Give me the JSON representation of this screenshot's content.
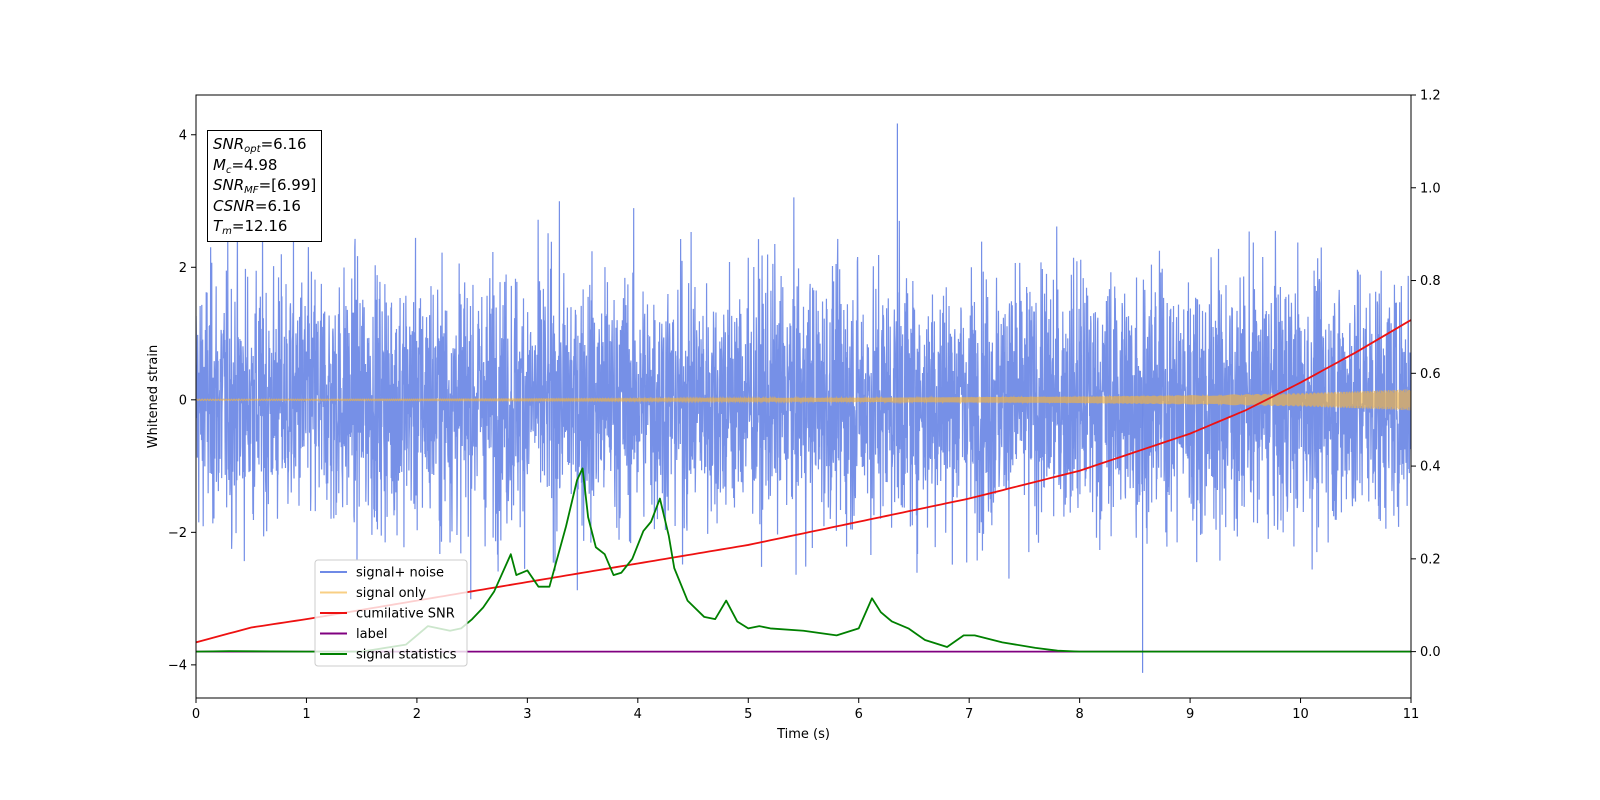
{
  "chart_data": {
    "type": "line",
    "xlabel": "Time (s)",
    "ylabel": "Whitened strain",
    "xlim": [
      0,
      11
    ],
    "ylim": [
      -4.5,
      4.6
    ],
    "y2lim": [
      -0.1,
      1.2
    ],
    "xticks": [
      "0",
      "1",
      "2",
      "3",
      "4",
      "5",
      "6",
      "7",
      "8",
      "9",
      "10",
      "11"
    ],
    "yticks": [
      "−4",
      "−2",
      "0",
      "2",
      "4"
    ],
    "y2ticks": [
      "0.0",
      "0.2",
      "0.4",
      "0.6",
      "0.8",
      "1.0",
      "1.2"
    ],
    "legend_position": "lower-left",
    "grid": false,
    "annotation": {
      "snr_opt_sym": "SNR",
      "snr_opt_sub": "opt",
      "snr_opt_val": "=6.16",
      "mc_sym": "M",
      "mc_sub": "c",
      "mc_val": "=4.98",
      "snr_mf_sym": "SNR",
      "snr_mf_sub": "MF",
      "snr_mf_val": "=[6.99]",
      "csnr_sym": "CSNR",
      "csnr_val": "=6.16",
      "tm_sym": "T",
      "tm_sub": "m",
      "tm_val": "=12.16"
    },
    "series": [
      {
        "name": "signal+ noise",
        "color": "#6f8ae6",
        "axis": "left",
        "description_values": {
          "typical_range": [
            -2.0,
            2.0
          ],
          "max_peak": 4.17,
          "min_peak": -4.12,
          "min_peak_at": 8.57,
          "max_peak_at": 6.35
        }
      },
      {
        "name": "signal only",
        "color": "#f5b642",
        "axis": "left",
        "envelope": {
          "x": [
            0,
            2,
            4,
            6,
            8,
            9,
            10,
            11
          ],
          "amp": [
            0.01,
            0.012,
            0.02,
            0.03,
            0.05,
            0.07,
            0.1,
            0.16
          ]
        }
      },
      {
        "name": "cumilative SNR",
        "color": "#ee1111",
        "axis": "right",
        "x": [
          0,
          0.5,
          1,
          1.5,
          2,
          2.5,
          3,
          3.5,
          4,
          4.5,
          5,
          5.5,
          6,
          6.5,
          7,
          7.5,
          8,
          8.5,
          9,
          9.5,
          10,
          10.5,
          11
        ],
        "y": [
          0.02,
          0.052,
          0.07,
          0.09,
          0.11,
          0.13,
          0.15,
          0.17,
          0.19,
          0.21,
          0.23,
          0.255,
          0.28,
          0.305,
          0.33,
          0.36,
          0.39,
          0.43,
          0.47,
          0.52,
          0.58,
          0.645,
          0.715
        ]
      },
      {
        "name": "label",
        "color": "#800080",
        "axis": "right",
        "x": [
          0,
          11
        ],
        "y": [
          0.0,
          0.0
        ]
      },
      {
        "name": "signal statistics",
        "color": "#008000",
        "axis": "right",
        "x": [
          0,
          0.3,
          1,
          1.5,
          1.9,
          2.1,
          2.3,
          2.4,
          2.5,
          2.6,
          2.7,
          2.85,
          2.9,
          3.0,
          3.1,
          3.2,
          3.35,
          3.45,
          3.5,
          3.55,
          3.62,
          3.7,
          3.78,
          3.85,
          3.95,
          4.05,
          4.12,
          4.2,
          4.28,
          4.33,
          4.45,
          4.6,
          4.7,
          4.8,
          4.9,
          5.0,
          5.1,
          5.2,
          5.5,
          5.8,
          6.0,
          6.12,
          6.2,
          6.3,
          6.45,
          6.6,
          6.8,
          6.95,
          7.05,
          7.3,
          7.6,
          7.8,
          8.0,
          11
        ],
        "y": [
          0.0,
          0.001,
          0.0,
          0.0,
          0.015,
          0.055,
          0.045,
          0.05,
          0.07,
          0.095,
          0.13,
          0.21,
          0.165,
          0.175,
          0.14,
          0.14,
          0.27,
          0.37,
          0.395,
          0.29,
          0.225,
          0.21,
          0.165,
          0.17,
          0.2,
          0.26,
          0.28,
          0.33,
          0.25,
          0.18,
          0.11,
          0.075,
          0.07,
          0.11,
          0.065,
          0.05,
          0.055,
          0.05,
          0.045,
          0.035,
          0.05,
          0.115,
          0.085,
          0.065,
          0.05,
          0.025,
          0.01,
          0.035,
          0.035,
          0.02,
          0.008,
          0.002,
          0.0,
          0.0
        ]
      }
    ]
  }
}
